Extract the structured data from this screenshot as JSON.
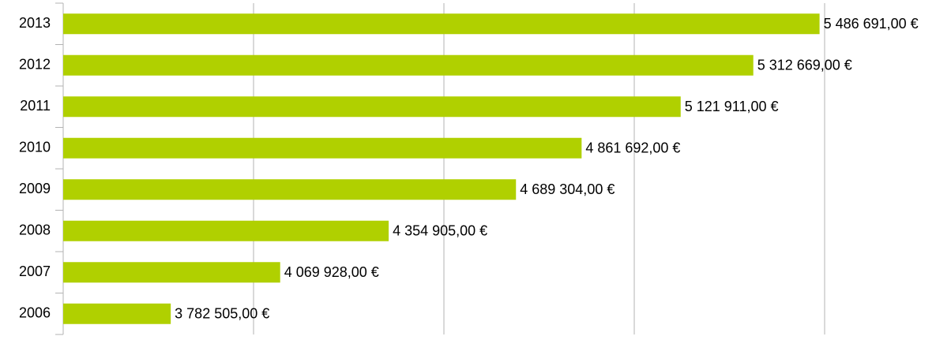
{
  "chart_data": {
    "type": "bar",
    "orientation": "horizontal",
    "categories": [
      "2013",
      "2012",
      "2011",
      "2010",
      "2009",
      "2008",
      "2007",
      "2006"
    ],
    "values": [
      5486691,
      5312669,
      5121911,
      4861692,
      4689304,
      4354905,
      4069928,
      3782505
    ],
    "value_labels": [
      "5 486 691,00 €",
      "5 312 669,00 €",
      "5 121 911,00 €",
      "4 861 692,00 €",
      "4 689 304,00 €",
      "4 354 905,00 €",
      "4 069 928,00 €",
      "3 782 505,00 €"
    ],
    "color": "#b0d000",
    "xlim": [
      3500000,
      5500000
    ],
    "xticks": [
      3500000,
      4000000,
      4500000,
      5000000,
      5500000
    ],
    "grid": true
  }
}
